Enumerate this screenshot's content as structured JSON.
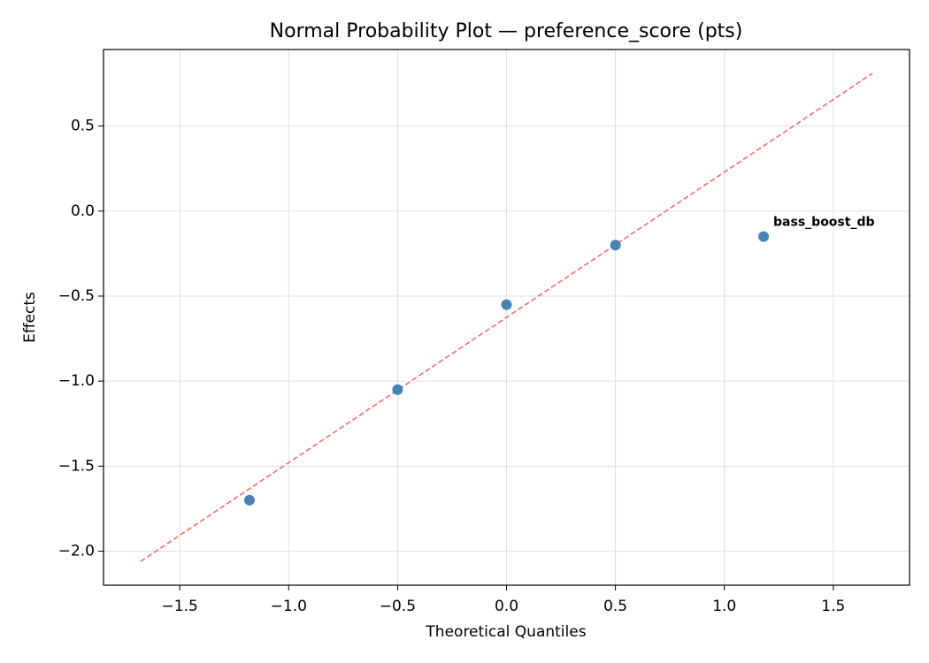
{
  "chart_data": {
    "type": "scatter",
    "title": "Normal Probability Plot — preference_score (pts)",
    "x_label": "Theoretical Quantiles",
    "y_label": "Effects",
    "x": [
      -1.18,
      -0.5,
      0,
      0.5,
      1.18
    ],
    "values": [
      -1.7,
      -1.05,
      -0.55,
      -0.2,
      -0.15
    ],
    "color": "#4682b4",
    "reference_line": {
      "x": [
        -1.68,
        1.68
      ],
      "values": [
        -2.06,
        0.81
      ],
      "color": "#f06464",
      "style": "dashed"
    },
    "annotations": [
      {
        "text": "bass_boost_db",
        "x": 1.18,
        "y": -0.15,
        "color": "#ff0000"
      }
    ],
    "xlim": [
      -1.85,
      1.85
    ],
    "ylim": [
      -2.2,
      0.95
    ],
    "xticks": [
      {
        "value": -1.5,
        "label": "−1.5"
      },
      {
        "value": -1.0,
        "label": "−1.0"
      },
      {
        "value": -0.5,
        "label": "−0.5"
      },
      {
        "value": 0,
        "label": "0.0"
      },
      0.5,
      {
        "value": 1.0,
        "label": "1.0"
      },
      1.5
    ],
    "yticks": [
      0.5,
      {
        "value": 0,
        "label": "0.0"
      },
      {
        "value": -0.5,
        "label": "−0.5"
      },
      {
        "value": -1.0,
        "label": "−1.0"
      },
      {
        "value": -1.5,
        "label": "−1.5"
      },
      {
        "value": -2.0,
        "label": "−2.0"
      }
    ],
    "grid": true
  }
}
